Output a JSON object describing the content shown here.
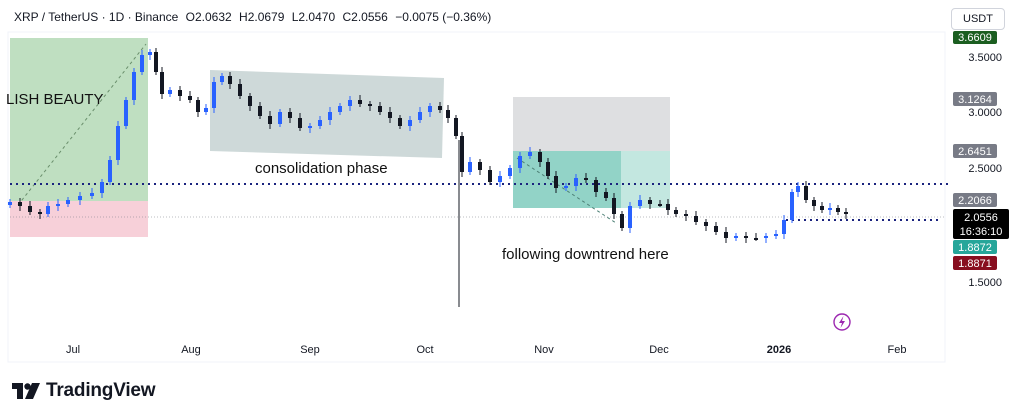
{
  "header": {
    "symbol": "XRP / TetherUS · 1D · Binance",
    "open": "O2.0632",
    "high": "H2.0679",
    "low": "L2.0470",
    "close": "C2.0556",
    "change": "−0.0075 (−0.36%)"
  },
  "currency_button": "USDT",
  "annotations": {
    "bullish": "LISH BEAUTY",
    "consolidation": "consolidation phase",
    "downtrend": "following downtrend here"
  },
  "price_axis": {
    "ticks": [
      "3.5000",
      "3.0000",
      "2.5000",
      "1.5000"
    ],
    "badges": [
      {
        "label": "3.6609",
        "bg": "#1b5e20",
        "fg": "#ffffff"
      },
      {
        "label": "3.1264",
        "bg": "#787b86",
        "fg": "#ffffff"
      },
      {
        "label": "2.6451",
        "bg": "#787b86",
        "fg": "#ffffff"
      },
      {
        "label": "2.2066",
        "bg": "#787b86",
        "fg": "#ffffff"
      },
      {
        "label": "2.0556",
        "bg": "#000000",
        "fg": "#ffffff"
      },
      {
        "label": "16:36:10",
        "bg": "#000000",
        "fg": "#ffffff"
      },
      {
        "label": "1.8872",
        "bg": "#26a69a",
        "fg": "#ffffff"
      },
      {
        "label": "1.8871",
        "bg": "#880e1f",
        "fg": "#ffffff"
      }
    ]
  },
  "time_axis": [
    "Jul",
    "Aug",
    "Sep",
    "Oct",
    "Nov",
    "Dec",
    "2026",
    "Feb"
  ],
  "brand": {
    "name": "TradingView"
  },
  "colors": {
    "up": "#2962ff",
    "down": "#131722",
    "dotted_line": "#1a237e",
    "green_box": "#a5d6a7",
    "red_box": "#f8bbd0",
    "gray_box": "#c8d3d3",
    "teal_box": "#80cbc4"
  }
}
